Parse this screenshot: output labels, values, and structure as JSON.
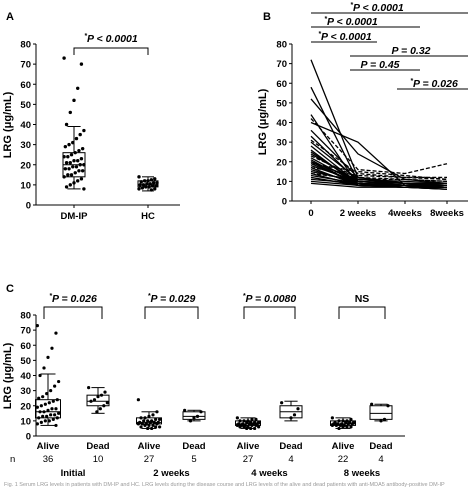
{
  "chart_data": [
    {
      "panel": "A",
      "type": "box-scatter",
      "ylabel": "LRG (μg/mL)",
      "ylim": [
        0,
        80
      ],
      "yticks": [
        0,
        10,
        20,
        30,
        40,
        50,
        60,
        70,
        80
      ],
      "categories": [
        "DM-IP",
        "HC"
      ],
      "boxes": [
        {
          "name": "DM-IP",
          "whisker_low": 8,
          "q1": 14,
          "median": 20,
          "q3": 26,
          "whisker_high": 39
        },
        {
          "name": "HC",
          "whisker_low": 7,
          "q1": 9,
          "median": 10,
          "q3": 12,
          "whisker_high": 14
        }
      ],
      "points": [
        [
          73,
          70,
          58,
          52,
          46,
          40,
          37,
          35,
          33,
          31,
          30,
          29,
          28,
          27,
          26,
          25,
          24,
          24,
          23,
          22,
          22,
          21,
          21,
          20,
          20,
          19,
          19,
          18,
          18,
          17,
          17,
          16,
          15,
          15,
          14,
          13,
          12,
          11,
          10,
          9,
          8
        ],
        [
          14,
          13,
          12.5,
          12,
          12,
          11.5,
          11,
          11,
          10.5,
          10.5,
          10,
          10,
          9.5,
          9.5,
          9,
          9,
          8.5,
          8,
          8,
          7.5
        ]
      ],
      "comparisons": [
        {
          "between": [
            0,
            1
          ],
          "label": "P < 0.0001",
          "star": "*"
        }
      ]
    },
    {
      "panel": "B",
      "type": "line",
      "ylabel": "LRG (μg/mL)",
      "ylim": [
        0,
        80
      ],
      "yticks": [
        0,
        10,
        20,
        30,
        40,
        50,
        60,
        70,
        80
      ],
      "categories": [
        "0",
        "2 weeks",
        "4weeks",
        "8weeks"
      ],
      "solid_series": [
        [
          72,
          12,
          9,
          8
        ],
        [
          58,
          10,
          8,
          7
        ],
        [
          52,
          24,
          11,
          9
        ],
        [
          44,
          8,
          7,
          6
        ],
        [
          40,
          30,
          8,
          7
        ],
        [
          36,
          12,
          9,
          8
        ],
        [
          33,
          10,
          8,
          7
        ],
        [
          30,
          11,
          9,
          8
        ],
        [
          28,
          9,
          7,
          7
        ],
        [
          26,
          8,
          8,
          7
        ],
        [
          24,
          10,
          9,
          8
        ],
        [
          22,
          9,
          8,
          8
        ],
        [
          21,
          8,
          7,
          7
        ],
        [
          20,
          11,
          10,
          9
        ],
        [
          19,
          9,
          8,
          7
        ],
        [
          18,
          10,
          9,
          9
        ],
        [
          17,
          8,
          8,
          8
        ],
        [
          16,
          9,
          8,
          7
        ],
        [
          15,
          10,
          9,
          8
        ],
        [
          14,
          8,
          7,
          7
        ],
        [
          13,
          9,
          8,
          8
        ],
        [
          12,
          8,
          7,
          7
        ],
        [
          11,
          9,
          8,
          8
        ],
        [
          10,
          8,
          8,
          7
        ],
        [
          9,
          7,
          7,
          6
        ],
        [
          20,
          8,
          7,
          6
        ],
        [
          25,
          9,
          7,
          7
        ]
      ],
      "dashed_series": [
        [
          42,
          16,
          14,
          19
        ],
        [
          31,
          14,
          12,
          12
        ],
        [
          19,
          15,
          13,
          11
        ],
        [
          23,
          12,
          11,
          10
        ],
        [
          17,
          13,
          12,
          11
        ],
        [
          14,
          11,
          11,
          10
        ]
      ],
      "comparisons": [
        {
          "between": [
            0,
            3
          ],
          "label": "P < 0.0001",
          "star": "*"
        },
        {
          "between": [
            0,
            2
          ],
          "label": "P < 0.0001",
          "star": "*"
        },
        {
          "between": [
            0,
            1
          ],
          "label": "P < 0.0001",
          "star": "*"
        },
        {
          "between": [
            1,
            3
          ],
          "label": "P = 0.32",
          "star": ""
        },
        {
          "between": [
            1,
            2
          ],
          "label": "P = 0.45",
          "star": ""
        },
        {
          "between": [
            2,
            3
          ],
          "label": "P = 0.026",
          "star": "*"
        }
      ]
    },
    {
      "panel": "C",
      "type": "box-scatter",
      "ylabel": "LRG (μg/mL)",
      "ylim": [
        0,
        80
      ],
      "yticks": [
        0,
        10,
        20,
        30,
        40,
        50,
        60,
        70,
        80
      ],
      "n_label": "n",
      "groups": [
        {
          "name": "Initial",
          "comparison": {
            "label": "P = 0.026",
            "star": "*"
          },
          "boxes": [
            {
              "category": "Alive",
              "n": "36",
              "whisker_low": 7,
              "q1": 12,
              "median": 16,
              "q3": 24,
              "whisker_high": 41,
              "points": [
                73,
                68,
                58,
                52,
                45,
                40,
                36,
                33,
                30,
                28,
                26,
                25,
                24,
                23,
                22,
                21,
                20,
                19,
                18,
                18,
                17,
                16,
                16,
                15,
                14,
                14,
                13,
                13,
                12,
                12,
                11,
                10,
                10,
                9,
                8,
                7
              ]
            },
            {
              "category": "Dead",
              "n": "10",
              "whisker_low": 15,
              "q1": 20,
              "median": 23,
              "q3": 27,
              "whisker_high": 32,
              "points": [
                32,
                29,
                27,
                26,
                24,
                23,
                22,
                20,
                18,
                16
              ]
            }
          ]
        },
        {
          "name": "2 weeks",
          "comparison": {
            "label": "P = 0.029",
            "star": "*"
          },
          "boxes": [
            {
              "category": "Alive",
              "n": "27",
              "whisker_low": 5,
              "q1": 8,
              "median": 9,
              "q3": 12,
              "whisker_high": 16,
              "points": [
                24,
                16,
                14,
                13,
                12,
                12,
                11,
                11,
                10,
                10,
                10,
                9,
                9,
                9,
                9,
                8,
                8,
                8,
                8,
                7,
                7,
                7,
                6,
                6,
                6,
                5,
                5
              ]
            },
            {
              "category": "Dead",
              "n": "5",
              "whisker_low": 10,
              "q1": 11,
              "median": 13,
              "q3": 16,
              "whisker_high": 17,
              "points": [
                17,
                16,
                13,
                12,
                10
              ]
            }
          ]
        },
        {
          "name": "4 weeks",
          "comparison": {
            "label": "P = 0.0080",
            "star": "*"
          },
          "boxes": [
            {
              "category": "Alive",
              "n": "27",
              "whisker_low": 5,
              "q1": 7,
              "median": 8,
              "q3": 10,
              "whisker_high": 12,
              "points": [
                12,
                11,
                11,
                10,
                10,
                10,
                9,
                9,
                9,
                9,
                8,
                8,
                8,
                8,
                8,
                7,
                7,
                7,
                7,
                7,
                6,
                6,
                6,
                6,
                5,
                5,
                5
              ]
            },
            {
              "category": "Dead",
              "n": "4",
              "whisker_low": 10,
              "q1": 12,
              "median": 16,
              "q3": 20,
              "whisker_high": 23,
              "points": [
                22,
                18,
                14,
                12
              ]
            }
          ]
        },
        {
          "name": "8 weeks",
          "comparison": {
            "label": "NS",
            "star": ""
          },
          "boxes": [
            {
              "category": "Alive",
              "n": "22",
              "whisker_low": 5,
              "q1": 7,
              "median": 8,
              "q3": 10,
              "whisker_high": 12,
              "points": [
                12,
                11,
                10,
                10,
                10,
                9,
                9,
                9,
                9,
                8,
                8,
                8,
                8,
                8,
                7,
                7,
                7,
                7,
                6,
                6,
                6,
                5
              ]
            },
            {
              "category": "Dead",
              "n": "4",
              "whisker_low": 10,
              "q1": 11,
              "median": 15,
              "q3": 20,
              "whisker_high": 21,
              "points": [
                21,
                20,
                11,
                10
              ]
            }
          ]
        }
      ]
    }
  ],
  "caption": "Fig. 1  Serum LRG levels in patients with DM-IP and HC. LRG levels during the disease course and LRG levels of the alive and dead patients with anti-MDA5 antibody-positive DM-IP"
}
